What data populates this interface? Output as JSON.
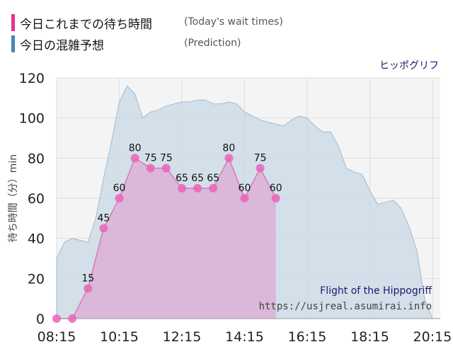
{
  "legend": [
    {
      "label": "今日これまでの待ち時間",
      "sublabel": "(Today's wait times)",
      "color": "#e8338d"
    },
    {
      "label": "今日の混雑予想",
      "sublabel": "(Prediction)",
      "color": "#4a86b4"
    }
  ],
  "subtitle": "ヒッポグリフ",
  "chart_data": {
    "type": "area",
    "ylabel": "待ち時間（分）min",
    "ylim": [
      0,
      120
    ],
    "yticks": [
      0,
      20,
      40,
      60,
      80,
      100,
      120
    ],
    "xlim": [
      "08:15",
      "20:30"
    ],
    "xticks": [
      "08:15",
      "10:15",
      "12:15",
      "14:15",
      "16:15",
      "18:15",
      "20:15"
    ],
    "grid": true,
    "annotation_title": "Flight of the Hippogriff",
    "annotation_url": "https://usjreal.asumirai.info",
    "series": [
      {
        "name": "今日これまでの待ち時間",
        "color": "#e8338d",
        "points": [
          {
            "t": "08:15",
            "v": 0
          },
          {
            "t": "08:45",
            "v": 0
          },
          {
            "t": "09:15",
            "v": 15
          },
          {
            "t": "09:45",
            "v": 45
          },
          {
            "t": "10:15",
            "v": 60
          },
          {
            "t": "10:45",
            "v": 80
          },
          {
            "t": "11:15",
            "v": 75
          },
          {
            "t": "11:45",
            "v": 75
          },
          {
            "t": "12:15",
            "v": 65
          },
          {
            "t": "12:45",
            "v": 65
          },
          {
            "t": "13:15",
            "v": 65
          },
          {
            "t": "13:45",
            "v": 80
          },
          {
            "t": "14:15",
            "v": 60
          },
          {
            "t": "14:45",
            "v": 75
          },
          {
            "t": "15:15",
            "v": 60
          }
        ],
        "labels": [
          {
            "t": "09:15",
            "text": "15"
          },
          {
            "t": "09:45",
            "text": "45"
          },
          {
            "t": "10:15",
            "text": "60"
          },
          {
            "t": "10:45",
            "text": "80"
          },
          {
            "t": "11:15",
            "text": "75"
          },
          {
            "t": "11:45",
            "text": "75"
          },
          {
            "t": "12:15",
            "text": "65"
          },
          {
            "t": "12:45",
            "text": "65"
          },
          {
            "t": "13:15",
            "text": "65"
          },
          {
            "t": "13:45",
            "text": "80"
          },
          {
            "t": "14:15",
            "text": "60"
          },
          {
            "t": "14:45",
            "text": "75"
          },
          {
            "t": "15:15",
            "text": "60"
          }
        ]
      },
      {
        "name": "今日の混雑予想",
        "color": "#4a86b4",
        "points": [
          {
            "t": "08:15",
            "v": 30
          },
          {
            "t": "08:30",
            "v": 38
          },
          {
            "t": "08:45",
            "v": 40
          },
          {
            "t": "09:00",
            "v": 39
          },
          {
            "t": "09:15",
            "v": 38
          },
          {
            "t": "09:30",
            "v": 50
          },
          {
            "t": "09:45",
            "v": 70
          },
          {
            "t": "10:00",
            "v": 88
          },
          {
            "t": "10:15",
            "v": 108
          },
          {
            "t": "10:30",
            "v": 116
          },
          {
            "t": "10:45",
            "v": 112
          },
          {
            "t": "11:00",
            "v": 100
          },
          {
            "t": "11:15",
            "v": 103
          },
          {
            "t": "11:30",
            "v": 104
          },
          {
            "t": "11:45",
            "v": 106
          },
          {
            "t": "12:00",
            "v": 107
          },
          {
            "t": "12:15",
            "v": 108
          },
          {
            "t": "12:30",
            "v": 108
          },
          {
            "t": "12:45",
            "v": 109
          },
          {
            "t": "13:00",
            "v": 109
          },
          {
            "t": "13:15",
            "v": 107
          },
          {
            "t": "13:30",
            "v": 107
          },
          {
            "t": "13:45",
            "v": 108
          },
          {
            "t": "14:00",
            "v": 107
          },
          {
            "t": "14:15",
            "v": 103
          },
          {
            "t": "14:30",
            "v": 101
          },
          {
            "t": "14:45",
            "v": 99
          },
          {
            "t": "15:00",
            "v": 98
          },
          {
            "t": "15:15",
            "v": 97
          },
          {
            "t": "15:30",
            "v": 96
          },
          {
            "t": "15:45",
            "v": 99
          },
          {
            "t": "16:00",
            "v": 101
          },
          {
            "t": "16:15",
            "v": 100
          },
          {
            "t": "16:30",
            "v": 96
          },
          {
            "t": "16:45",
            "v": 93
          },
          {
            "t": "17:00",
            "v": 93
          },
          {
            "t": "17:15",
            "v": 86
          },
          {
            "t": "17:30",
            "v": 75
          },
          {
            "t": "17:45",
            "v": 73
          },
          {
            "t": "18:00",
            "v": 72
          },
          {
            "t": "18:15",
            "v": 64
          },
          {
            "t": "18:30",
            "v": 57
          },
          {
            "t": "18:45",
            "v": 58
          },
          {
            "t": "19:00",
            "v": 59
          },
          {
            "t": "19:15",
            "v": 55
          },
          {
            "t": "19:30",
            "v": 46
          },
          {
            "t": "19:45",
            "v": 34
          },
          {
            "t": "20:00",
            "v": 10
          },
          {
            "t": "20:15",
            "v": 0
          },
          {
            "t": "20:30",
            "v": 0
          }
        ]
      }
    ]
  }
}
